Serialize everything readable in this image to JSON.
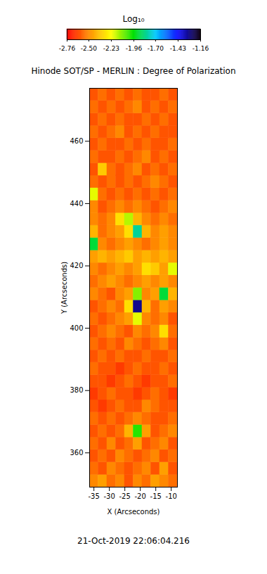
{
  "chart_data": {
    "type": "heatmap",
    "title": "Hinode SOT/SP - MERLIN : Degree of Polarization",
    "xlabel": "X (Arcseconds)",
    "ylabel": "Y (Arcseconds)",
    "caption": "21-Oct-2019 22:06:04.216",
    "xlim": [
      -36.4,
      -8
    ],
    "ylim": [
      349,
      477
    ],
    "xticks": [
      -35,
      -30,
      -25,
      -20,
      -15,
      -10
    ],
    "yticks": [
      360,
      380,
      400,
      420,
      440,
      460
    ],
    "colorbar": {
      "label": "Log₁₀",
      "range": [
        -2.76,
        -1.16
      ],
      "ticks": [
        -2.76,
        {
          "value": -2.5,
          "label": "-2.50"
        },
        -2.23,
        -1.96,
        {
          "value": -1.7,
          "label": "-1.70"
        },
        -1.43,
        -1.16
      ]
    },
    "cells": {
      "x_edges": [
        -36.4,
        -33.56,
        -30.72,
        -27.88,
        -25.04,
        -22.2,
        -19.36,
        -16.52,
        -13.68,
        -10.84,
        -8
      ],
      "y_edges": [
        349,
        353,
        357,
        361,
        365,
        369,
        373,
        377,
        381,
        385,
        389,
        393,
        397,
        401,
        405,
        409,
        413,
        417,
        421,
        425,
        429,
        433,
        437,
        441,
        445,
        449,
        453,
        457,
        461,
        465,
        469,
        473,
        477
      ],
      "values": [
        [
          -2.5,
          -2.45,
          -2.55,
          -2.5,
          -2.6,
          -2.5,
          -2.55,
          -2.45,
          -2.5,
          -2.55
        ],
        [
          -2.55,
          -2.6,
          -2.5,
          -2.55,
          -2.6,
          -2.55,
          -2.5,
          -2.6,
          -2.45,
          -2.6
        ],
        [
          -2.6,
          -2.55,
          -2.6,
          -2.5,
          -2.55,
          -2.6,
          -2.55,
          -2.5,
          -2.6,
          -2.55
        ],
        [
          -2.55,
          -2.6,
          -2.5,
          -2.6,
          -2.55,
          -2.45,
          -2.6,
          -2.55,
          -2.5,
          -2.6
        ],
        [
          -2.6,
          -2.55,
          -2.6,
          -2.55,
          -2.4,
          -2.0,
          -2.45,
          -2.6,
          -2.55,
          -2.5
        ],
        [
          -2.55,
          -2.6,
          -2.55,
          -2.6,
          -2.55,
          -2.5,
          -2.55,
          -2.6,
          -2.6,
          -2.55
        ],
        [
          -2.6,
          -2.65,
          -2.6,
          -2.55,
          -2.6,
          -2.6,
          -2.5,
          -2.55,
          -2.6,
          -2.6
        ],
        [
          -2.65,
          -2.6,
          -2.55,
          -2.6,
          -2.6,
          -2.65,
          -2.6,
          -2.55,
          -2.6,
          -2.65
        ],
        [
          -2.6,
          -2.6,
          -2.65,
          -2.6,
          -2.55,
          -2.6,
          -2.65,
          -2.6,
          -2.6,
          -2.55
        ],
        [
          -2.55,
          -2.6,
          -2.6,
          -2.65,
          -2.6,
          -2.55,
          -2.6,
          -2.6,
          -2.55,
          -2.6
        ],
        [
          -2.6,
          -2.55,
          -2.6,
          -2.55,
          -2.6,
          -2.6,
          -2.55,
          -2.6,
          -2.6,
          -2.55
        ],
        [
          -2.55,
          -2.6,
          -2.55,
          -2.6,
          -2.5,
          -2.55,
          -2.6,
          -2.55,
          -2.5,
          -2.6
        ],
        [
          -2.6,
          -2.55,
          -2.5,
          -2.55,
          -2.6,
          -2.5,
          -2.55,
          -2.5,
          -2.3,
          -2.55
        ],
        [
          -2.55,
          -2.6,
          -2.55,
          -2.5,
          -2.45,
          -2.2,
          -2.5,
          -2.55,
          -2.5,
          -2.6
        ],
        [
          -2.6,
          -2.55,
          -2.5,
          -2.55,
          -2.3,
          -1.3,
          -2.4,
          -2.55,
          -2.45,
          -2.5
        ],
        [
          -2.5,
          -2.55,
          -2.6,
          -2.5,
          -2.45,
          -2.1,
          -2.5,
          -2.45,
          -1.9,
          -2.4
        ],
        [
          -2.55,
          -2.5,
          -2.45,
          -2.5,
          -2.55,
          -2.5,
          -2.45,
          -2.5,
          -2.45,
          -2.5
        ],
        [
          -2.5,
          -2.55,
          -2.5,
          -2.45,
          -2.5,
          -2.45,
          -2.3,
          -2.35,
          -2.45,
          -2.2
        ],
        [
          -2.45,
          -2.4,
          -2.45,
          -2.4,
          -2.35,
          -2.45,
          -2.4,
          -2.45,
          -2.4,
          -2.45
        ],
        [
          -1.9,
          -2.5,
          -2.55,
          -2.5,
          -2.45,
          -2.5,
          -2.55,
          -2.5,
          -2.45,
          -2.5
        ],
        [
          -2.4,
          -2.55,
          -2.5,
          -2.45,
          -2.3,
          -1.8,
          -2.4,
          -2.5,
          -2.45,
          -2.5
        ],
        [
          -2.5,
          -2.55,
          -2.5,
          -2.3,
          -2.15,
          -2.4,
          -2.5,
          -2.55,
          -2.5,
          -2.55
        ],
        [
          -2.5,
          -2.6,
          -2.55,
          -2.5,
          -2.55,
          -2.5,
          -2.55,
          -2.6,
          -2.55,
          -2.5
        ],
        [
          -2.2,
          -2.55,
          -2.6,
          -2.55,
          -2.6,
          -2.55,
          -2.6,
          -2.55,
          -2.6,
          -2.55
        ],
        [
          -2.55,
          -2.6,
          -2.55,
          -2.6,
          -2.55,
          -2.6,
          -2.55,
          -2.5,
          -2.55,
          -2.6
        ],
        [
          -2.6,
          -2.35,
          -2.55,
          -2.6,
          -2.55,
          -2.5,
          -2.6,
          -2.55,
          -2.6,
          -2.55
        ],
        [
          -2.55,
          -2.6,
          -2.6,
          -2.55,
          -2.6,
          -2.55,
          -2.5,
          -2.6,
          -2.55,
          -2.6
        ],
        [
          -2.6,
          -2.55,
          -2.6,
          -2.6,
          -2.55,
          -2.6,
          -2.55,
          -2.6,
          -2.6,
          -2.55
        ],
        [
          -2.55,
          -2.6,
          -2.55,
          -2.5,
          -2.6,
          -2.55,
          -2.6,
          -2.55,
          -2.6,
          -2.6
        ],
        [
          -2.6,
          -2.55,
          -2.6,
          -2.55,
          -2.6,
          -2.6,
          -2.55,
          -2.6,
          -2.55,
          -2.6
        ],
        [
          -2.55,
          -2.6,
          -2.55,
          -2.6,
          -2.55,
          -2.5,
          -2.6,
          -2.55,
          -2.6,
          -2.55
        ],
        [
          -2.6,
          -2.55,
          -2.6,
          -2.55,
          -2.6,
          -2.55,
          -2.6,
          -2.6,
          -2.55,
          -2.6
        ]
      ]
    }
  }
}
